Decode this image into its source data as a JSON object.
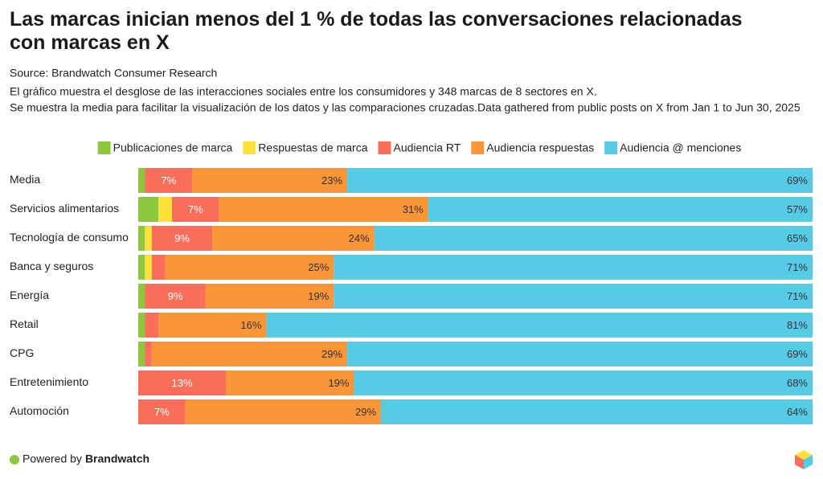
{
  "chart_data": {
    "type": "stacked-bar-horizontal",
    "title": "Las marcas inician menos del 1 % de todas las conversaciones relacionadas con marcas en X",
    "source": "Source: Brandwatch Consumer Research",
    "description": [
      "El gráfico muestra el desglose de las interacciones sociales entre los consumidores y 348 marcas de 8 sectores en X.",
      "Se muestra la media para facilitar la visualización de los datos y las comparaciones cruzadas.Data gathered from public posts on X from Jan 1 to Jun 30, 2025"
    ],
    "footer_text": "Powered by",
    "footer_brand": "Brandwatch",
    "xlim": [
      0,
      100
    ],
    "categories": [
      "Media",
      "Servicios alimentarios",
      "Tecnología de consumo",
      "Banca y seguros",
      "Energía",
      "Retail",
      "CPG",
      "Entretenimiento",
      "Automoción"
    ],
    "series": [
      {
        "name": "Publicaciones de marca",
        "color": "#8dc63f",
        "values": [
          1,
          3,
          1,
          1,
          1,
          1,
          1,
          0,
          0
        ],
        "value_labels": [
          null,
          null,
          null,
          null,
          null,
          null,
          null,
          null,
          null
        ]
      },
      {
        "name": "Respuestas de marca",
        "color": "#fde03a",
        "values": [
          0,
          2,
          1,
          1,
          0,
          0,
          0,
          0,
          0
        ],
        "value_labels": [
          null,
          null,
          null,
          null,
          null,
          null,
          null,
          null,
          null
        ]
      },
      {
        "name": "Audiencia RT",
        "color": "#fa6e5a",
        "values": [
          7,
          7,
          9,
          2,
          9,
          2,
          1,
          13,
          7
        ],
        "value_labels": [
          "7%",
          "7%",
          "9%",
          null,
          "9%",
          null,
          null,
          "13%",
          "7%"
        ]
      },
      {
        "name": "Audiencia respuestas",
        "color": "#fa9538",
        "values": [
          23,
          31,
          24,
          25,
          19,
          16,
          29,
          19,
          29
        ],
        "value_labels": [
          "23%",
          "31%",
          "24%",
          "25%",
          "19%",
          "16%",
          "29%",
          "19%",
          "29%"
        ]
      },
      {
        "name": "Audiencia @ menciones",
        "color": "#56cbe6",
        "values": [
          69,
          57,
          65,
          71,
          71,
          81,
          69,
          68,
          64
        ],
        "value_labels": [
          "69%",
          "57%",
          "65%",
          "71%",
          "71%",
          "81%",
          "69%",
          "68%",
          "64%"
        ]
      }
    ]
  }
}
